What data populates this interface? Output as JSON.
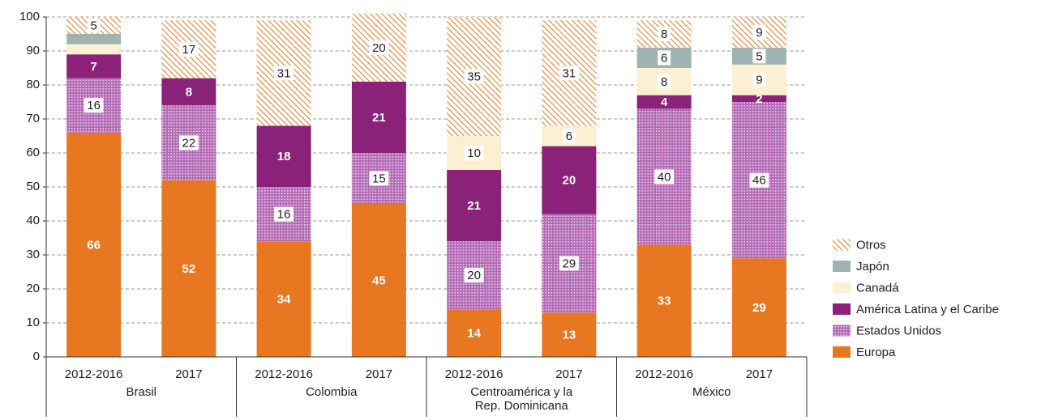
{
  "chart_data": {
    "type": "stacked_bar",
    "categories": [
      "2012-2016",
      "2017",
      "2012-2016",
      "2017",
      "2012-2016",
      "2017",
      "2012-2016",
      "2017"
    ],
    "groups": [
      {
        "name": [
          "Brasil"
        ],
        "size": 2
      },
      {
        "name": [
          "Colombia"
        ],
        "size": 2
      },
      {
        "name": [
          "Centroamérica y la",
          "Rep. Dominicana"
        ],
        "size": 2
      },
      {
        "name": [
          "México"
        ],
        "size": 2
      }
    ],
    "ylim": [
      0,
      100
    ],
    "yticks": [
      0,
      10,
      20,
      30,
      40,
      50,
      60,
      70,
      80,
      90,
      100
    ],
    "grid": true,
    "legend": "right",
    "series": [
      {
        "name": "Europa",
        "color": "#e87722",
        "values": [
          66,
          52,
          34,
          45,
          14,
          13,
          33,
          29
        ],
        "value_labels": [
          "66",
          "52",
          "34",
          "45",
          "14",
          "13",
          "33",
          "29"
        ]
      },
      {
        "name": "Estados Unidos",
        "color": "#b26ab4",
        "pattern": "dots",
        "values": [
          16,
          22,
          16,
          15,
          20,
          29,
          40,
          46
        ],
        "value_labels": [
          "16",
          "22",
          "16",
          "15",
          "20",
          "29",
          "40",
          "46"
        ]
      },
      {
        "name": "América Latina y el Caribe",
        "color": "#8b2279",
        "values": [
          7,
          8,
          18,
          21,
          21,
          20,
          4,
          2
        ],
        "value_labels": [
          "7",
          "8",
          "18",
          "21",
          "21",
          "20",
          "4",
          "2"
        ]
      },
      {
        "name": "Canadá",
        "color": "#fdf0d2",
        "values": [
          3,
          0,
          0,
          0,
          10,
          6,
          8,
          9
        ],
        "value_labels": [
          null,
          null,
          null,
          null,
          "10",
          "6",
          "8",
          "9"
        ]
      },
      {
        "name": "Japón",
        "color": "#9fb4b0",
        "values": [
          3,
          0,
          0,
          0,
          0,
          0,
          6,
          5
        ],
        "value_labels": [
          null,
          null,
          null,
          null,
          null,
          null,
          "6",
          "5"
        ]
      },
      {
        "name": "Otros",
        "color": "#e87722",
        "pattern": "hatch",
        "values": [
          5,
          17,
          31,
          20,
          35,
          31,
          8,
          9
        ],
        "value_labels": [
          "5",
          "17",
          "31",
          "20",
          "35",
          "31",
          "8",
          "9"
        ]
      }
    ]
  }
}
